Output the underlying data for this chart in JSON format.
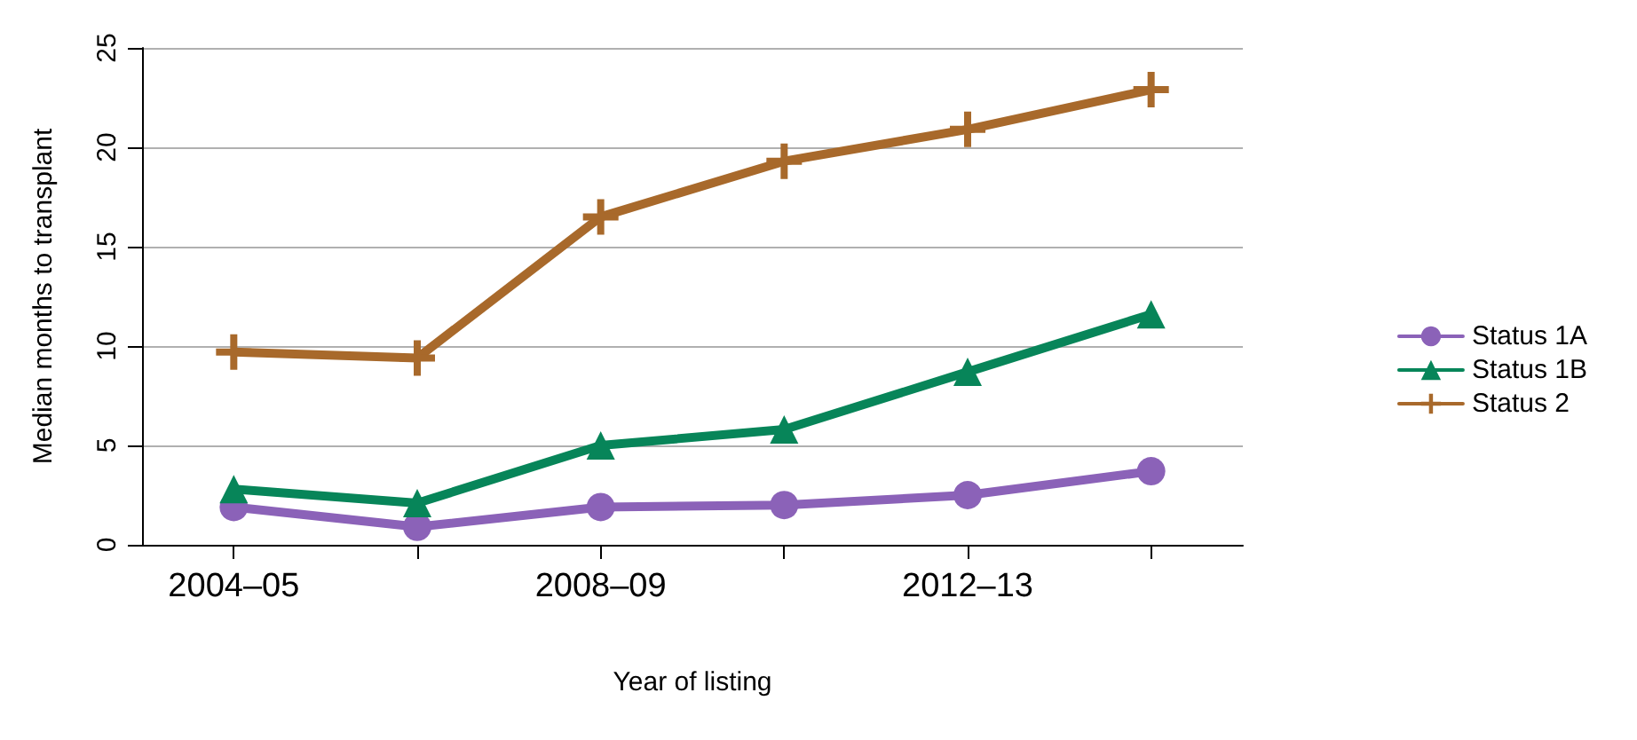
{
  "chart_data": {
    "type": "line",
    "xlabel": "Year of listing",
    "ylabel": "Median months to transplant",
    "categories": [
      "2004–05",
      null,
      "2008–09",
      null,
      "2012–13",
      null
    ],
    "series": [
      {
        "name": "Status 1A",
        "color": "#8b62b8",
        "marker": "circle",
        "values": [
          1.9,
          0.9,
          1.9,
          2.0,
          2.5,
          3.7
        ]
      },
      {
        "name": "Status 1B",
        "color": "#078559",
        "marker": "triangle",
        "values": [
          2.8,
          2.1,
          5.0,
          5.8,
          8.7,
          11.6
        ]
      },
      {
        "name": "Status 2",
        "color": "#a8692b",
        "marker": "cross",
        "values": [
          9.7,
          9.4,
          16.5,
          19.3,
          20.9,
          22.9
        ]
      }
    ],
    "ylim": [
      0,
      25
    ],
    "yticks": [
      0,
      5,
      10,
      15,
      20,
      25
    ],
    "grid": "y",
    "legend": "right",
    "line_style": "solid"
  }
}
